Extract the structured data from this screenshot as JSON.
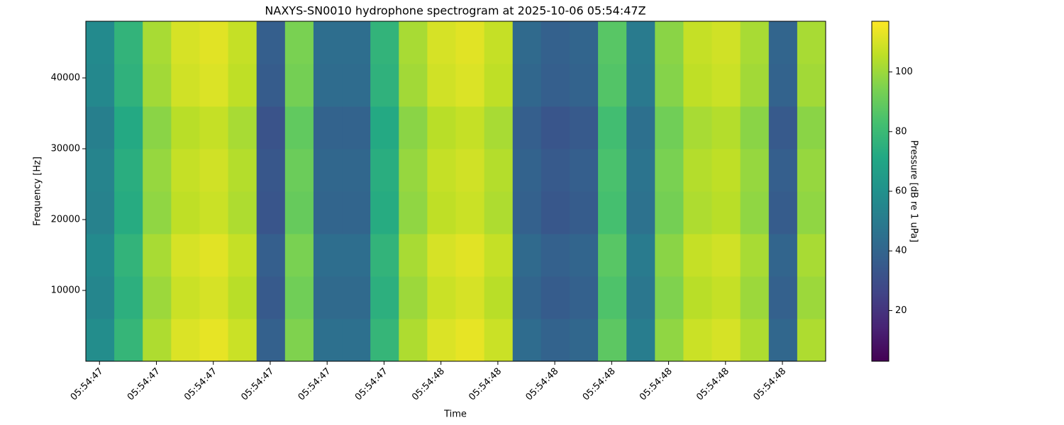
{
  "chart_data": {
    "type": "heatmap",
    "title": "NAXYS-SN0010 hydrophone spectrogram at 2025-10-06 05:54:47Z",
    "x_label": "Time",
    "y_label": "Frequency [Hz]",
    "colorbar_label": "Pressure [dB re 1 uPa]",
    "colormap": "viridis",
    "xbins": [
      0,
      0.05,
      0.1,
      0.15,
      0.2,
      0.25,
      0.3,
      0.35,
      0.4,
      0.45,
      0.5,
      0.55,
      0.6,
      0.65,
      0.7,
      0.75,
      0.8,
      0.85,
      0.9,
      0.95,
      1.0,
      1.05,
      1.1,
      1.15,
      1.2,
      1.25,
      1.3
    ],
    "ybins": [
      0,
      6000,
      12000,
      18000,
      24000,
      30000,
      36000,
      42000,
      48000
    ],
    "values": [
      [
        58,
        78,
        103,
        111,
        113,
        108,
        38,
        95,
        45,
        45,
        78,
        103,
        111,
        113,
        108,
        43,
        39,
        41,
        88,
        51,
        98,
        108,
        110,
        103,
        41,
        103
      ],
      [
        55,
        75,
        100,
        108,
        110,
        105,
        35,
        92,
        42,
        42,
        75,
        100,
        108,
        110,
        105,
        40,
        36,
        38,
        85,
        48,
        95,
        105,
        107,
        100,
        38,
        100
      ],
      [
        57,
        77,
        102,
        110,
        112,
        107,
        37,
        94,
        44,
        44,
        77,
        102,
        110,
        112,
        107,
        42,
        38,
        40,
        87,
        50,
        97,
        107,
        109,
        102,
        40,
        102
      ],
      [
        53,
        73,
        98,
        106,
        108,
        103,
        33,
        90,
        40,
        40,
        73,
        98,
        106,
        108,
        103,
        38,
        34,
        36,
        83,
        46,
        93,
        103,
        105,
        98,
        36,
        98
      ],
      [
        54,
        74,
        99,
        107,
        109,
        104,
        34,
        91,
        41,
        41,
        74,
        99,
        107,
        109,
        104,
        39,
        35,
        37,
        84,
        47,
        94,
        104,
        106,
        99,
        37,
        99
      ],
      [
        52,
        72,
        97,
        105,
        107,
        102,
        32,
        89,
        39,
        39,
        72,
        97,
        105,
        107,
        102,
        37,
        33,
        35,
        82,
        45,
        92,
        102,
        104,
        97,
        35,
        97
      ],
      [
        56,
        76,
        101,
        109,
        111,
        106,
        36,
        93,
        43,
        43,
        76,
        101,
        109,
        111,
        106,
        41,
        37,
        39,
        86,
        49,
        96,
        106,
        108,
        101,
        39,
        101
      ],
      [
        57,
        77,
        102,
        110,
        112,
        107,
        37,
        94,
        44,
        44,
        77,
        102,
        110,
        112,
        107,
        42,
        38,
        40,
        87,
        50,
        97,
        107,
        109,
        102,
        40,
        102
      ]
    ],
    "xlim": [
      0,
      1.3
    ],
    "xticks": [
      {
        "value": 0.024,
        "label": "05:54:47"
      },
      {
        "value": 0.124,
        "label": "05:54:47"
      },
      {
        "value": 0.224,
        "label": "05:54:47"
      },
      {
        "value": 0.324,
        "label": "05:54:47"
      },
      {
        "value": 0.424,
        "label": "05:54:47"
      },
      {
        "value": 0.524,
        "label": "05:54:47"
      },
      {
        "value": 0.624,
        "label": "05:54:48"
      },
      {
        "value": 0.724,
        "label": "05:54:48"
      },
      {
        "value": 0.824,
        "label": "05:54:48"
      },
      {
        "value": 0.924,
        "label": "05:54:48"
      },
      {
        "value": 1.024,
        "label": "05:54:48"
      },
      {
        "value": 1.124,
        "label": "05:54:48"
      },
      {
        "value": 1.224,
        "label": "05:54:48"
      }
    ],
    "ylim": [
      0,
      48000
    ],
    "yticks": [
      10000,
      20000,
      30000,
      40000
    ],
    "clim": [
      3,
      117
    ],
    "cticks": [
      20,
      40,
      60,
      80,
      100
    ]
  }
}
